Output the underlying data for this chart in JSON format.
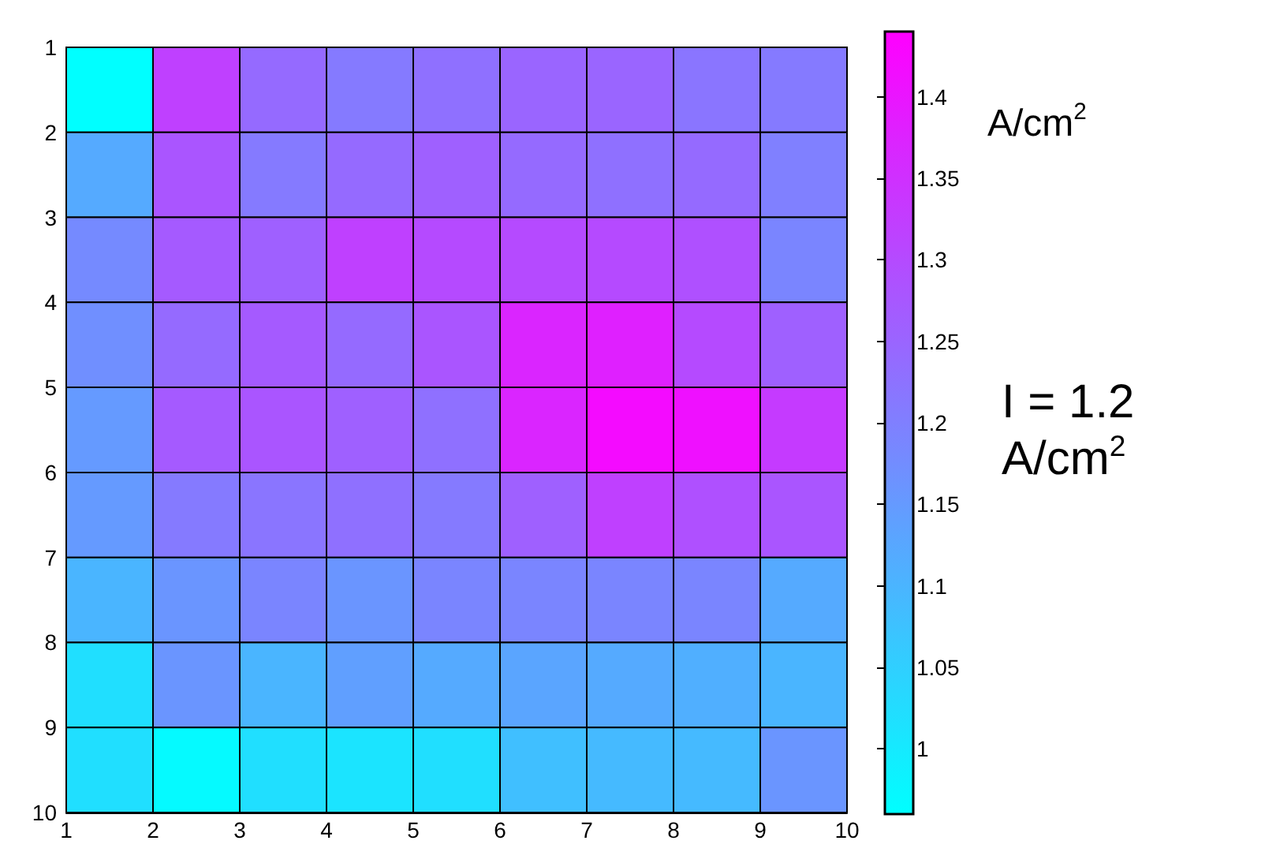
{
  "chart_data": {
    "type": "heatmap",
    "xlim": [
      1,
      10
    ],
    "xticks": [
      1,
      2,
      3,
      4,
      5,
      6,
      7,
      8,
      9,
      10
    ],
    "ylim": [
      10,
      1
    ],
    "yticks": [
      1,
      2,
      3,
      4,
      5,
      6,
      7,
      8,
      9,
      10
    ],
    "cells": [
      [
        0.96,
        1.32,
        1.24,
        1.21,
        1.23,
        1.25,
        1.25,
        1.22,
        1.21
      ],
      [
        1.12,
        1.28,
        1.21,
        1.24,
        1.26,
        1.24,
        1.23,
        1.24,
        1.2
      ],
      [
        1.18,
        1.27,
        1.26,
        1.32,
        1.3,
        1.3,
        1.3,
        1.29,
        1.19
      ],
      [
        1.17,
        1.24,
        1.27,
        1.24,
        1.28,
        1.37,
        1.38,
        1.3,
        1.26
      ],
      [
        1.15,
        1.27,
        1.28,
        1.26,
        1.23,
        1.37,
        1.42,
        1.41,
        1.33
      ],
      [
        1.15,
        1.21,
        1.22,
        1.23,
        1.21,
        1.26,
        1.32,
        1.29,
        1.28
      ],
      [
        1.1,
        1.16,
        1.19,
        1.16,
        1.19,
        1.19,
        1.19,
        1.19,
        1.12
      ],
      [
        1.02,
        1.16,
        1.1,
        1.14,
        1.12,
        1.13,
        1.12,
        1.11,
        1.1
      ],
      [
        1.02,
        0.97,
        1.02,
        1.01,
        1.02,
        1.08,
        1.09,
        1.09,
        1.16
      ]
    ],
    "clim": [
      0.96,
      1.44
    ],
    "cticks": [
      1,
      1.05,
      1.1,
      1.15,
      1.2,
      1.25,
      1.3,
      1.35,
      1.4
    ],
    "clabel": "A/cm$^{2}$",
    "annotations": [
      "I = 1.2\nA/cm$^{2}$"
    ]
  }
}
